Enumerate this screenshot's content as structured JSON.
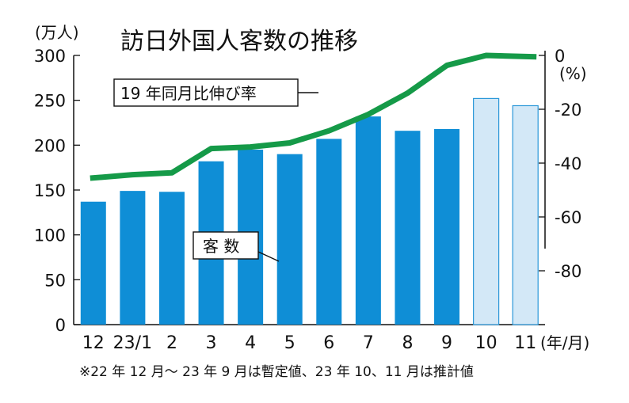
{
  "chart_data": {
    "type": "bar+line",
    "title": "訪日外国人客数の推移",
    "left_axis": {
      "unit": "(万人)",
      "range": [
        0,
        300
      ],
      "ticks": [
        0,
        50,
        100,
        150,
        200,
        250,
        300
      ]
    },
    "right_axis": {
      "unit": "(%)",
      "range": [
        -100,
        0
      ],
      "ticks": [
        "0",
        "-20",
        "-40",
        "-60",
        "-80"
      ]
    },
    "x_unit": "(年/月)",
    "categories": [
      "12",
      "23/1",
      "2",
      "3",
      "4",
      "5",
      "6",
      "7",
      "8",
      "9",
      "10",
      "11"
    ],
    "series": [
      {
        "name": "客 数",
        "kind": "bar",
        "axis": "left",
        "values": [
          137,
          149,
          148,
          182,
          195,
          190,
          207,
          232,
          216,
          218,
          252,
          244
        ],
        "estimated_from_index": 10
      },
      {
        "name": "19 年同月比伸び率",
        "kind": "line",
        "axis": "right",
        "values": [
          -45.6,
          -44.3,
          -43.6,
          -34.6,
          -34.0,
          -32.5,
          -28.0,
          -21.9,
          -14.0,
          -3.7,
          0.0,
          -0.5
        ]
      }
    ],
    "footnote": "※22 年 12 月～ 23 年 9 月は暫定値、23 年 10、11 月は推計値"
  },
  "colors": {
    "bar": "#0F8ED6",
    "bar_estimate": "#D3E8F7",
    "bar_estimate_stroke": "#2A97D8",
    "line": "#159A48"
  }
}
